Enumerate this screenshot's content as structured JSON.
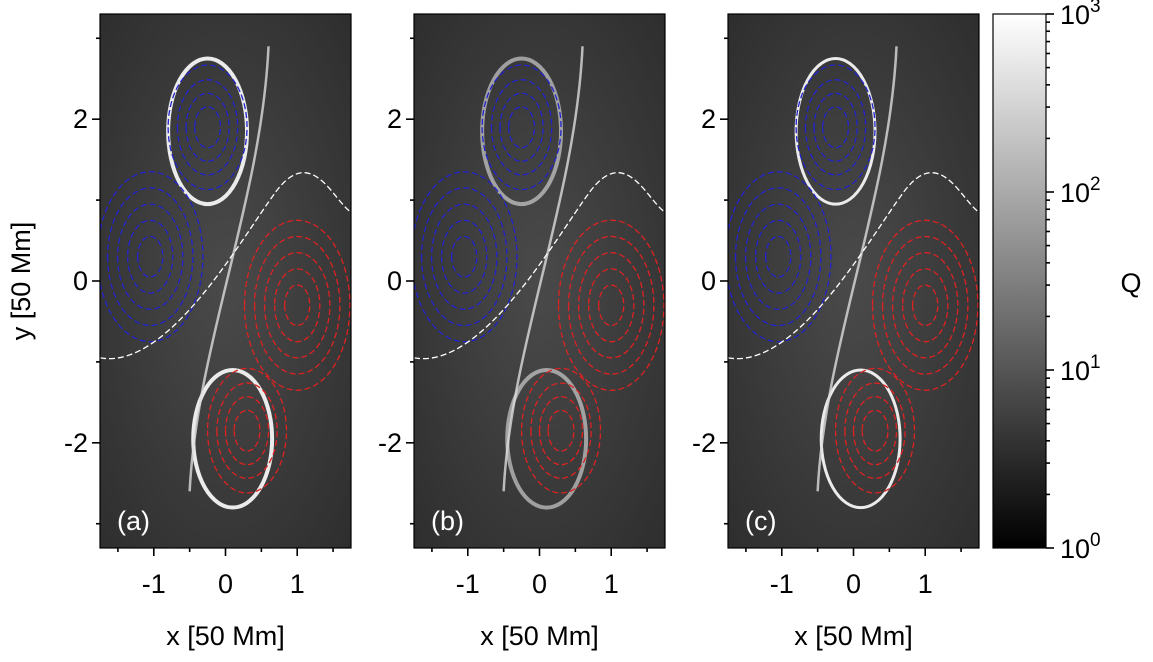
{
  "chart_data": {
    "type": "heatmap",
    "panels": [
      {
        "label": "(a)"
      },
      {
        "label": "(b)"
      },
      {
        "label": "(c)"
      }
    ],
    "xlabel": "x [50 Mm]",
    "ylabel": "y [50 Mm]",
    "xlim": [
      -1.75,
      1.75
    ],
    "ylim": [
      -3.3,
      3.3
    ],
    "xticks": [
      -1,
      0,
      1
    ],
    "xtick_labels": [
      "-1",
      "0",
      "1"
    ],
    "yticks": [
      -2,
      0,
      2
    ],
    "ytick_labels": [
      "-2",
      "0",
      "2"
    ],
    "colorbar": {
      "label": "Q",
      "scale": "log",
      "range": [
        1,
        1000
      ],
      "ticks": [
        {
          "base": "10",
          "exp": "3",
          "value": 1000
        },
        {
          "base": "10",
          "exp": "2",
          "value": 100
        },
        {
          "base": "10",
          "exp": "1",
          "value": 10
        },
        {
          "base": "10",
          "exp": "0",
          "value": 1
        }
      ],
      "colormap": "grayscale"
    },
    "contour_colors": {
      "negative": "#2222cc",
      "positive": "#dd2222",
      "neutral": "#ffffff"
    },
    "grid": false,
    "legend": "none"
  }
}
